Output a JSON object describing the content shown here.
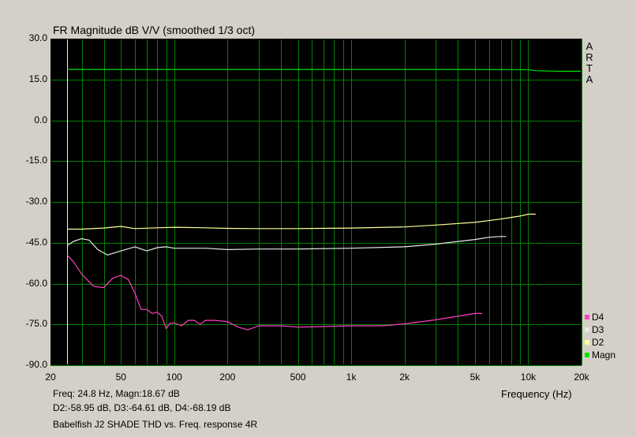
{
  "title": "FR Magnitude dB V/V (smoothed 1/3 oct)",
  "arta_letters": [
    "A",
    "R",
    "T",
    "A"
  ],
  "chart_data": {
    "type": "line",
    "xscale": "log",
    "xlim": [
      20,
      20000
    ],
    "ylim": [
      -90,
      30
    ],
    "grid": true,
    "xlabel": "Frequency (Hz)",
    "ylabel": "",
    "cursor_x": 24.8,
    "x_tick_labels": [
      {
        "value": 20,
        "label": "20"
      },
      {
        "value": 50,
        "label": "50"
      },
      {
        "value": 100,
        "label": "100"
      },
      {
        "value": 200,
        "label": "200"
      },
      {
        "value": 500,
        "label": "500"
      },
      {
        "value": 1000,
        "label": "1k"
      },
      {
        "value": 2000,
        "label": "2k"
      },
      {
        "value": 5000,
        "label": "5k"
      },
      {
        "value": 10000,
        "label": "10k"
      },
      {
        "value": 20000,
        "label": "20k"
      }
    ],
    "y_tick_labels": [
      "30.0",
      "15.0",
      "0.0",
      "-15.0",
      "-30.0",
      "-45.0",
      "-60.0",
      "-75.0",
      "-90.0"
    ],
    "series": [
      {
        "name": "Magn",
        "color": "#00e000",
        "x": [
          24.8,
          100,
          1000,
          5000,
          10000,
          11000,
          15000,
          20000
        ],
        "y": [
          18.7,
          18.7,
          18.7,
          18.7,
          18.6,
          18.2,
          18.0,
          18.0
        ]
      },
      {
        "name": "D2",
        "color": "#ffff99",
        "x": [
          24.8,
          30,
          40,
          50,
          60,
          80,
          100,
          150,
          200,
          300,
          500,
          1000,
          2000,
          3000,
          5000,
          7000,
          9000,
          10000,
          11000
        ],
        "y": [
          -40.0,
          -40.0,
          -39.6,
          -39.0,
          -39.8,
          -39.5,
          -39.3,
          -39.5,
          -39.7,
          -39.8,
          -39.8,
          -39.6,
          -39.2,
          -38.5,
          -37.5,
          -36.3,
          -35.2,
          -34.5,
          -34.5
        ]
      },
      {
        "name": "D3",
        "color": "#e8e8e8",
        "x": [
          24.8,
          27,
          30,
          33,
          37,
          42,
          50,
          60,
          70,
          80,
          90,
          100,
          150,
          200,
          300,
          500,
          1000,
          2000,
          3000,
          5000,
          6000,
          7000,
          7500
        ],
        "y": [
          -46.0,
          -44.5,
          -43.5,
          -44.0,
          -47.5,
          -49.5,
          -48.0,
          -46.5,
          -48.0,
          -46.8,
          -46.5,
          -47.0,
          -47.0,
          -47.5,
          -47.3,
          -47.3,
          -47.0,
          -46.5,
          -45.5,
          -43.8,
          -43.0,
          -42.7,
          -42.7
        ]
      },
      {
        "name": "D4",
        "color": "#ff40c0",
        "x": [
          24.8,
          27,
          30,
          35,
          40,
          45,
          50,
          55,
          60,
          65,
          70,
          75,
          80,
          85,
          90,
          95,
          100,
          110,
          120,
          130,
          140,
          150,
          170,
          200,
          230,
          260,
          300,
          400,
          500,
          700,
          1000,
          1500,
          2000,
          3000,
          4000,
          5000,
          5500
        ],
        "y": [
          -49.5,
          -52.0,
          -56.5,
          -61.0,
          -61.5,
          -58.0,
          -57.0,
          -58.5,
          -63.5,
          -69.5,
          -69.5,
          -71.0,
          -70.5,
          -72.0,
          -76.5,
          -74.5,
          -74.5,
          -75.5,
          -73.5,
          -73.5,
          -75.0,
          -73.5,
          -73.5,
          -74.0,
          -76.0,
          -77.0,
          -75.5,
          -75.5,
          -76.0,
          -75.8,
          -75.5,
          -75.5,
          -74.8,
          -73.3,
          -72.0,
          -71.0,
          -71.0
        ]
      }
    ]
  },
  "info": {
    "line1": "Freq: 24.8 Hz, Magn:18.67 dB",
    "line2": "D2:-58.95 dB, D3:-64.61 dB, D4:-68.19 dB",
    "line3": "Babelfish J2 SHADE THD vs. Freq. response 4R"
  },
  "legend": [
    {
      "label": "D4",
      "color": "#ff40c0"
    },
    {
      "label": "D3",
      "color": "#e8e8e8"
    },
    {
      "label": "D2",
      "color": "#ffff99"
    },
    {
      "label": "Magn",
      "color": "#00e000"
    }
  ],
  "colors": {
    "plot_bg": "#000000",
    "grid": "#008000",
    "cursor": "#ffff99",
    "page_bg": "#d4d0c8"
  }
}
